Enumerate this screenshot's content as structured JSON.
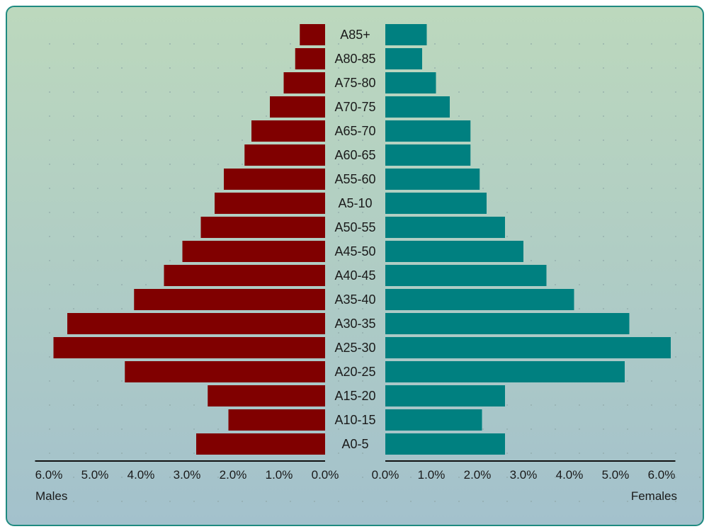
{
  "chart_data": {
    "type": "bar",
    "orientation": "horizontal",
    "layout": "population-pyramid",
    "categories": [
      "A85+",
      "A80-85",
      "A75-80",
      "A70-75",
      "A65-70",
      "A60-65",
      "A55-60",
      "A5-10",
      "A50-55",
      "A45-50",
      "A40-45",
      "A35-40",
      "A30-35",
      "A25-30",
      "A20-25",
      "A15-20",
      "A10-15",
      "A0-5"
    ],
    "series": [
      {
        "name": "Males",
        "color": "#800000",
        "values": [
          0.55,
          0.65,
          0.9,
          1.2,
          1.6,
          1.75,
          2.2,
          2.4,
          2.7,
          3.1,
          3.5,
          4.15,
          5.6,
          5.9,
          4.35,
          2.55,
          2.1,
          2.8
        ]
      },
      {
        "name": "Females",
        "color": "#008080",
        "values": [
          0.9,
          0.8,
          1.1,
          1.4,
          1.85,
          1.85,
          2.05,
          2.2,
          2.6,
          3.0,
          3.5,
          4.1,
          5.3,
          6.2,
          5.2,
          2.6,
          2.1,
          2.6
        ]
      }
    ],
    "x_ticks": [
      "6.0%",
      "5.0%",
      "4.0%",
      "3.0%",
      "2.0%",
      "1.0%",
      "0.0%"
    ],
    "x_ticks_right": [
      "0.0%",
      "1.0%",
      "2.0%",
      "3.0%",
      "4.0%",
      "5.0%",
      "6.0%"
    ],
    "xlim": [
      0,
      6.3
    ],
    "left_label": "Males",
    "right_label": "Females"
  }
}
